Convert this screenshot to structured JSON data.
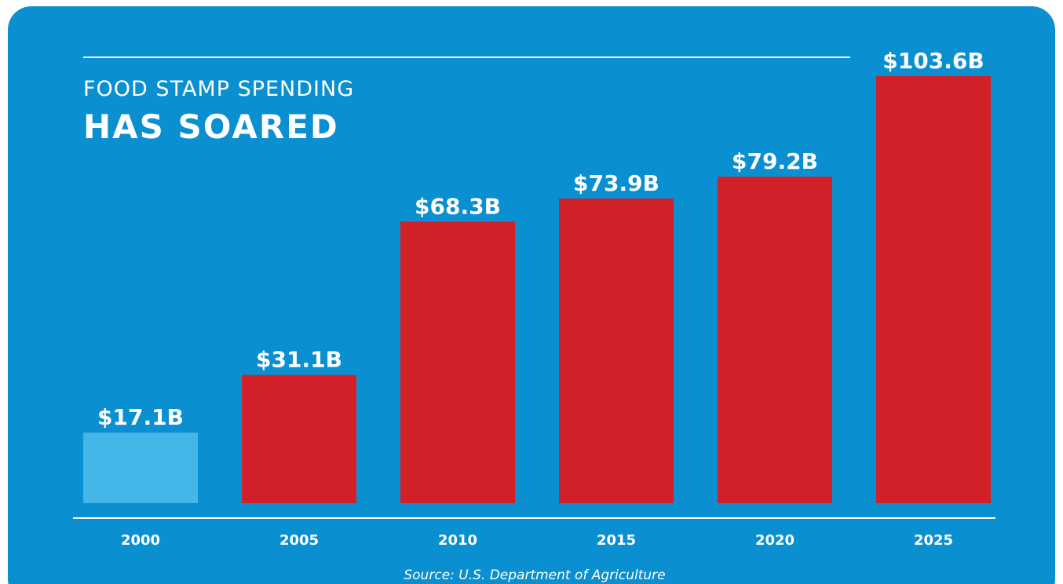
{
  "chart_data": {
    "type": "bar",
    "title": "FOOD STAMP SPENDING",
    "subtitle": "HAS SOARED",
    "categories": [
      "2000",
      "2005",
      "2010",
      "2015",
      "2020",
      "2025"
    ],
    "values": [
      17.1,
      31.1,
      68.3,
      73.9,
      79.2,
      103.6
    ],
    "value_labels": [
      "$17.1B",
      "$31.1B",
      "$68.3B",
      "$73.9B",
      "$79.2B",
      "$103.6B"
    ],
    "colors": [
      "#45b6e8",
      "#d12027",
      "#d12027",
      "#d12027",
      "#d12027",
      "#d12027"
    ],
    "source": "Source: U.S. Department of Agriculture"
  }
}
